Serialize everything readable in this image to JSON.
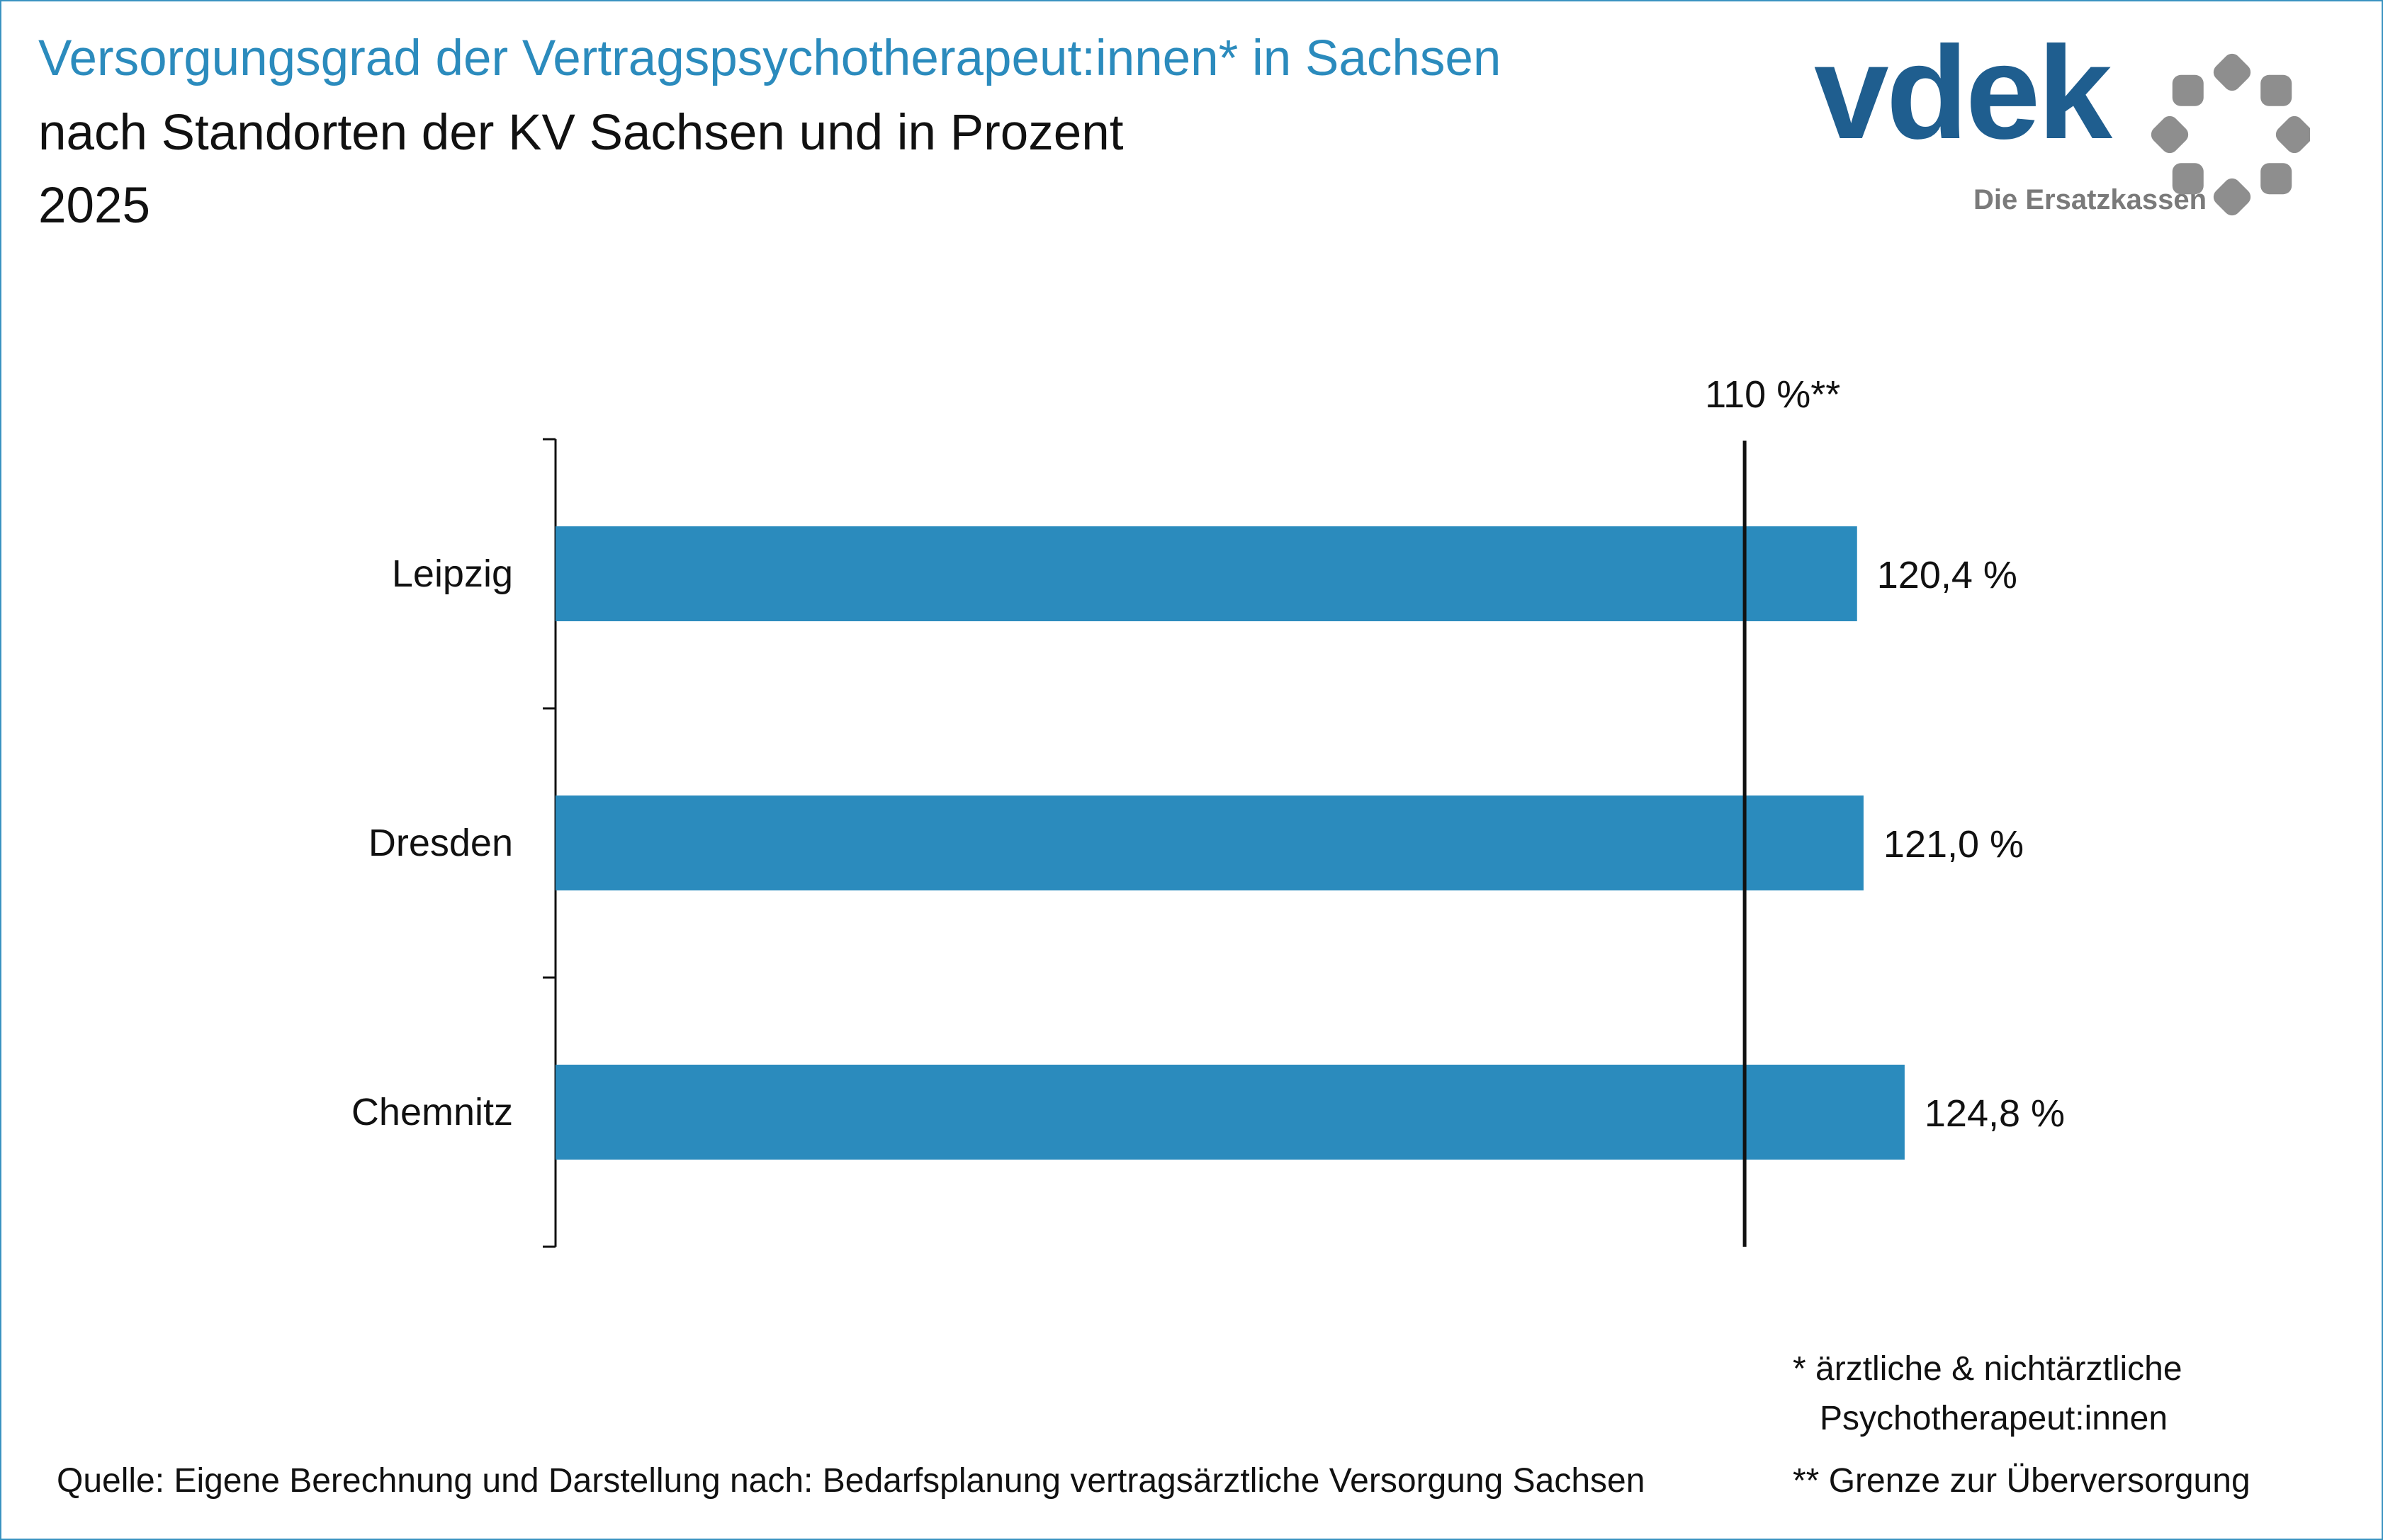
{
  "header": {
    "title": "Versorgungsgrad der Vertragspsychotherapeut:innen* in Sachsen",
    "subtitle": "nach Standorten der KV Sachsen und in Prozent",
    "year": "2025"
  },
  "logo": {
    "wordmark": "vdek",
    "tagline": "Die Ersatzkassen",
    "colors": {
      "wordmark": "#1f5e8f",
      "tagline": "#7a7a7a",
      "ring": "#8e8e8e"
    }
  },
  "colors": {
    "bar": "#2b8bbd",
    "title": "#2b8bbd",
    "border": "#3a93c1",
    "text": "#111111"
  },
  "chart_data": {
    "type": "bar",
    "orientation": "horizontal",
    "categories": [
      "Leipzig",
      "Dresden",
      "Chemnitz"
    ],
    "values": [
      120.4,
      121.0,
      124.8
    ],
    "value_labels": [
      "120,4 %",
      "121,0 %",
      "124,8 %"
    ],
    "reference_line": {
      "value": 110,
      "label": "110 %**"
    },
    "xlim": [
      0,
      125.2
    ],
    "grid": false,
    "axis_visible": false
  },
  "footnotes": {
    "star_line1": "* ärztliche & nichtärztliche",
    "star_line2": "Psychotherapeut:innen",
    "double_star": "** Grenze zur Überversorgung",
    "source": "Quelle: Eigene Berechnung und Darstellung nach: Bedarfsplanung vertragsärztliche Versorgung Sachsen"
  }
}
